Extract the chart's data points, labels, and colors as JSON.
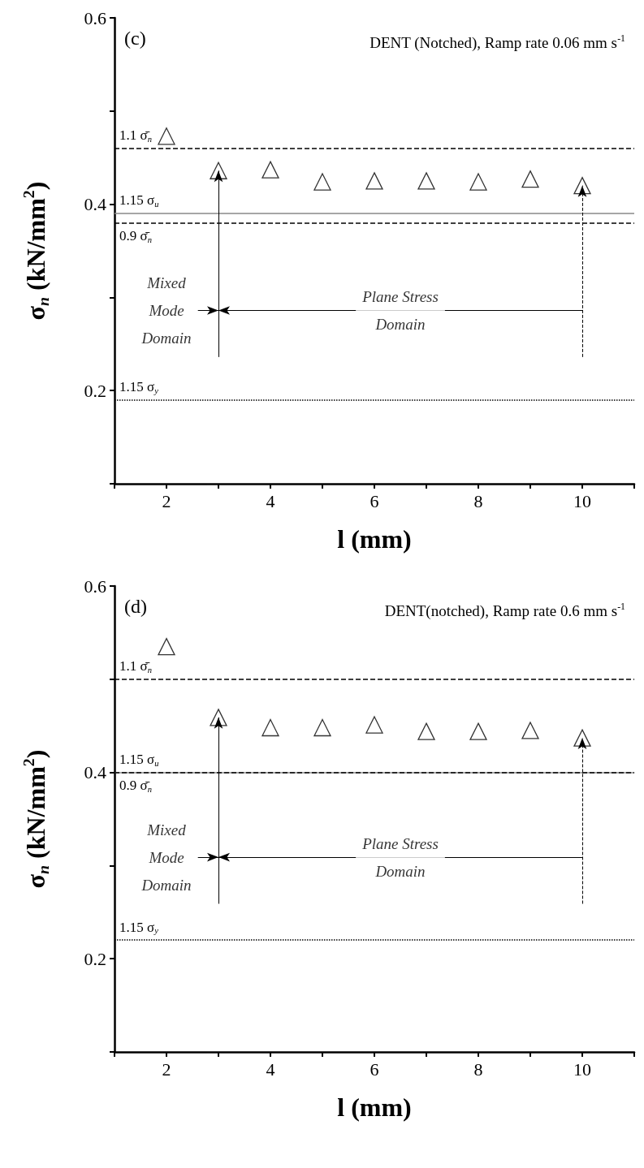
{
  "chart_data": [
    {
      "type": "scatter",
      "title": "(c)",
      "subtitle": "DENT (Notched), Ramp rate 0.06 mm s$^{-1}$",
      "xlabel": "l (mm)",
      "ylabel": "σ$_{n}$ (kN/mm$^{2}$)",
      "x": [
        2,
        3,
        4,
        5,
        6,
        7,
        8,
        9,
        10
      ],
      "values": [
        0.473,
        0.436,
        0.437,
        0.424,
        0.425,
        0.425,
        0.424,
        0.427,
        0.42
      ],
      "color": "#000000",
      "marker": "triangle",
      "xlim": [
        1,
        11
      ],
      "xticks": [
        {
          "value": 1,
          "label": null
        },
        2,
        {
          "value": 3,
          "label": null
        },
        4,
        {
          "value": 5,
          "label": null
        },
        6,
        {
          "value": 7,
          "label": null
        },
        8,
        {
          "value": 9,
          "label": null
        },
        10,
        {
          "value": 11,
          "label": null
        }
      ],
      "ylim": [
        0.1,
        0.6
      ],
      "yticks": [
        {
          "value": 0.1,
          "label": null
        },
        0.2,
        {
          "value": 0.3,
          "label": null
        },
        0.4,
        {
          "value": 0.5,
          "label": null
        },
        0.6
      ],
      "grid": false,
      "ref_lines": [
        {
          "axis": "y",
          "value": 0.46,
          "label": "1.1 σ̄$_{n}$",
          "line_style": "dashed",
          "color": "#000000"
        },
        {
          "axis": "y",
          "value": 0.39,
          "label": "1.15 σ$_{u}$",
          "line_style": "solid",
          "color": "#888888"
        },
        {
          "axis": "y",
          "value": 0.38,
          "label": "0.9 σ̄$_{n}$",
          "line_style": "dashed",
          "color": "#000000"
        },
        {
          "axis": "y",
          "value": 0.19,
          "label": "1.15 σ$_{y}$",
          "line_style": "dotted",
          "color": "#000000"
        }
      ],
      "annotations": [
        "Mixed\nMode\nDomain",
        "Plane Stress\nDomain"
      ]
    },
    {
      "type": "scatter",
      "title": "(d)",
      "subtitle": "DENT(notched), Ramp rate 0.6 mm s$^{-1}$",
      "xlabel": "l (mm)",
      "ylabel": "σ$_{n}$ (kN/mm$^{2}$)",
      "x": [
        2,
        3,
        4,
        5,
        6,
        7,
        8,
        9,
        10
      ],
      "values": [
        0.535,
        0.459,
        0.448,
        0.448,
        0.451,
        0.444,
        0.444,
        0.445,
        0.437
      ],
      "color": "#000000",
      "marker": "triangle",
      "xlim": [
        1,
        11
      ],
      "xticks": [
        {
          "value": 1,
          "label": null
        },
        2,
        {
          "value": 3,
          "label": null
        },
        4,
        {
          "value": 5,
          "label": null
        },
        6,
        {
          "value": 7,
          "label": null
        },
        8,
        {
          "value": 9,
          "label": null
        },
        10,
        {
          "value": 11,
          "label": null
        }
      ],
      "ylim": [
        0.1,
        0.6
      ],
      "yticks": [
        {
          "value": 0.1,
          "label": null
        },
        0.2,
        {
          "value": 0.3,
          "label": null
        },
        0.4,
        {
          "value": 0.5,
          "label": null
        },
        0.6
      ],
      "grid": false,
      "ref_lines": [
        {
          "axis": "y",
          "value": 0.5,
          "label": "1.1 σ̄$_{n}$",
          "line_style": "dashed",
          "color": "#000000"
        },
        {
          "axis": "y",
          "value": 0.401,
          "label": "1.15 σ$_{u}$",
          "line_style": "solid",
          "color": "#888888"
        },
        {
          "axis": "y",
          "value": 0.398,
          "label": "0.9 σ̄$_{n}$",
          "line_style": "dashed",
          "color": "#000000"
        },
        {
          "axis": "y",
          "value": 0.22,
          "label": "1.15 σ$_{y}$",
          "line_style": "dotted",
          "color": "#000000"
        }
      ],
      "annotations": [
        "Mixed\nMode\nDomain",
        "Plane Stress\nDomain"
      ]
    }
  ]
}
